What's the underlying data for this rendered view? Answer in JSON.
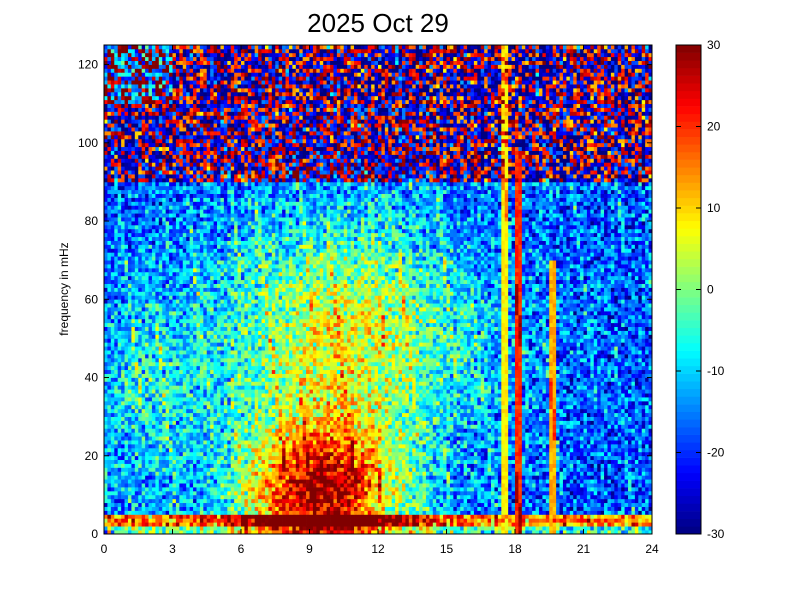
{
  "chart_data": [
    {
      "type": "heatmap",
      "title": "2025 Oct 29",
      "xlabel": "",
      "ylabel": "frequency in mHz",
      "xlim": [
        0,
        24
      ],
      "ylim": [
        0,
        125
      ],
      "x_ticks": [
        0,
        3,
        6,
        9,
        12,
        15,
        18,
        21,
        24
      ],
      "y_ticks": [
        0,
        20,
        40,
        60,
        80,
        100,
        120
      ],
      "x_tick_labels": [
        "0",
        "3",
        "6",
        "9",
        "12",
        "15",
        "18",
        "21",
        "24"
      ],
      "y_tick_labels": [
        "0",
        "20",
        "40",
        "60",
        "80",
        "100",
        "120"
      ],
      "colormap": "jet",
      "color_range": [
        -30,
        30
      ],
      "colorbar_ticks": [
        -30,
        -20,
        -10,
        0,
        10,
        20,
        30
      ],
      "colorbar_tick_labels": [
        "-30",
        "-20",
        "-10",
        "0",
        "10",
        "20",
        "30"
      ],
      "grid": false,
      "grid_resolution": {
        "x_bins": 160,
        "y_bins": 125
      },
      "description_of_values": {
        "low_frequency_band": "very high power (+20 to +30) below about 5 mHz across the day",
        "bright_horizontal_line": "about 2 mHz persistent band",
        "core_high_power_region": "about 0–25 mHz during 5–12 h at roughly +15 to +30",
        "mid_frequency_region": "about 20–80 mHz during 1–17 h around -5 to +10",
        "high_frequency_region": "above about 90 mHz mostly -25 to +30 (noisy dark red/blue)",
        "vertical_streaks": [
          {
            "x": 17.5,
            "y_min": 0,
            "y_max": 125,
            "value": 8
          },
          {
            "x": 18.1,
            "y_min": 0,
            "y_max": 98,
            "value": 20
          },
          {
            "x": 19.7,
            "y_min": 0,
            "y_max": 70,
            "value": 12
          }
        ]
      }
    }
  ]
}
